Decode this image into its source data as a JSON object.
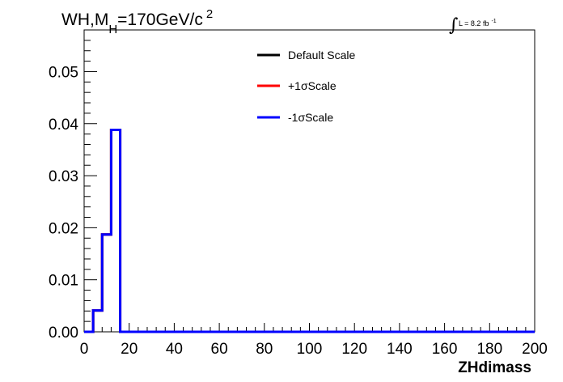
{
  "chart_data": {
    "type": "line",
    "title": {
      "prefix": "WH,M",
      "subscript": "H",
      "suffix": "=170GeV/c",
      "superscript": "2"
    },
    "lumi": {
      "symbol": "∫",
      "text": "L = 8.2 fb",
      "superscript": "-1"
    },
    "xlabel": "ZHdimass",
    "ylabel": "",
    "xlim": [
      0,
      200
    ],
    "ylim": [
      0,
      0.058
    ],
    "x_ticks": [
      0,
      20,
      40,
      60,
      80,
      100,
      120,
      140,
      160,
      180,
      200
    ],
    "x_tick_labels": [
      "0",
      "20",
      "40",
      "60",
      "80",
      "100",
      "120",
      "140",
      "160",
      "180",
      "200"
    ],
    "y_ticks": [
      0,
      0.01,
      0.02,
      0.03,
      0.04,
      0.05
    ],
    "y_tick_labels": [
      "0.00",
      "0.01",
      "0.02",
      "0.03",
      "0.04",
      "0.05"
    ],
    "bin_edges": [
      0,
      4,
      8,
      12,
      16,
      20,
      24,
      28,
      32,
      36,
      40,
      44,
      48,
      52,
      56,
      60,
      64,
      68,
      72,
      76,
      80,
      84,
      88,
      92,
      96,
      100,
      104,
      108,
      112,
      116,
      120,
      124,
      128,
      132,
      136,
      140,
      144,
      148,
      152,
      156,
      160,
      164,
      168,
      172,
      176,
      180,
      184,
      188,
      192,
      196,
      200
    ],
    "series": [
      {
        "name": "Default Scale",
        "color": "#000000",
        "values": [
          0,
          0.0041,
          0.0187,
          0.0388,
          0,
          0,
          0,
          0,
          0,
          0,
          0,
          0,
          0,
          0,
          0,
          0,
          0,
          0,
          0,
          0,
          0,
          0,
          0,
          0,
          0,
          0,
          0,
          0,
          0,
          0,
          0,
          0,
          0,
          0,
          0,
          0,
          0,
          0,
          0,
          0,
          0,
          0,
          0,
          0,
          0,
          0,
          0,
          0,
          0,
          0
        ]
      },
      {
        "name": "+1σScale",
        "color": "#ff0000",
        "values": [
          0,
          0.0041,
          0.0187,
          0.0388,
          0,
          0,
          0,
          0,
          0,
          0,
          0,
          0,
          0,
          0,
          0,
          0,
          0,
          0,
          0,
          0,
          0,
          0,
          0,
          0,
          0,
          0,
          0,
          0,
          0,
          0,
          0,
          0,
          0,
          0,
          0,
          0,
          0,
          0,
          0,
          0,
          0,
          0,
          0,
          0,
          0,
          0,
          0,
          0,
          0,
          0
        ]
      },
      {
        "name": "-1σScale",
        "color": "#0000ff",
        "values": [
          0,
          0.0041,
          0.0187,
          0.0388,
          0,
          0,
          0,
          0,
          0,
          0,
          0,
          0,
          0,
          0,
          0,
          0,
          0,
          0,
          0,
          0,
          0,
          0,
          0,
          0,
          0,
          0,
          0,
          0,
          0,
          0,
          0,
          0,
          0,
          0,
          0,
          0,
          0,
          0,
          0,
          0,
          0,
          0,
          0,
          0,
          0,
          0,
          0,
          0,
          0,
          0
        ]
      }
    ],
    "legend_position": "top-center",
    "grid": false
  }
}
